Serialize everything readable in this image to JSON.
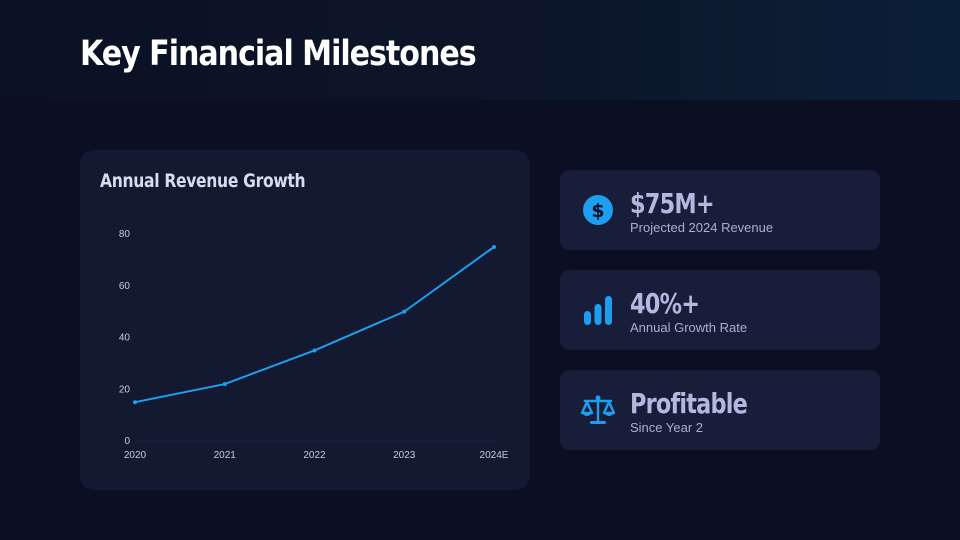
{
  "page": {
    "title": "Key Financial Milestones"
  },
  "colors": {
    "accent": "#1e9ef0",
    "background": "#0a0f22",
    "card": "#181e3a"
  },
  "chart_card": {
    "title": "Annual Revenue Growth"
  },
  "chart_data": {
    "type": "line",
    "title": "Annual Revenue Growth",
    "xlabel": "",
    "ylabel": "",
    "categories": [
      "2020",
      "2021",
      "2022",
      "2023",
      "2024E"
    ],
    "series": [
      {
        "values": [
          15,
          22,
          35,
          50,
          75
        ]
      }
    ],
    "ylim": [
      0,
      80
    ],
    "yticks": [
      0,
      20,
      40,
      60,
      80
    ],
    "grid": false,
    "color": "#1e9ef0"
  },
  "stats": [
    {
      "icon": "dollar-circle-icon",
      "value": "$75M+",
      "label": "Projected 2024 Revenue"
    },
    {
      "icon": "bar-chart-icon",
      "value": "40%+",
      "label": "Annual Growth Rate"
    },
    {
      "icon": "balance-scale-icon",
      "value": "Profitable",
      "label": "Since Year 2"
    }
  ]
}
